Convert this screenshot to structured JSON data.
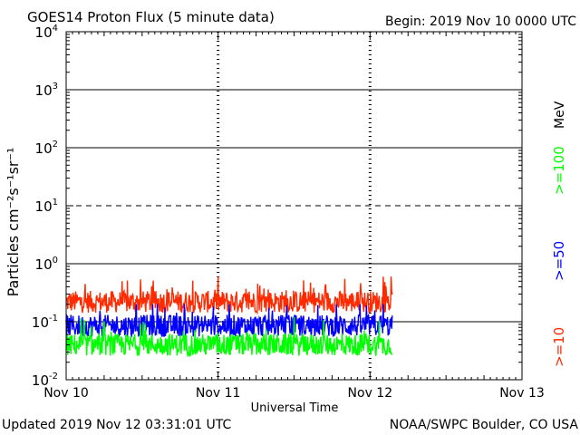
{
  "chart_data": {
    "type": "line",
    "title": "GOES14 Proton Flux (5 minute data)",
    "begin_label": "Begin: 2019 Nov 10 0000 UTC",
    "xlabel": "Universal Time",
    "ylabel": "Particles cm⁻²s⁻¹sr⁻¹",
    "y_scale": "log",
    "ylim": [
      0.01,
      10000
    ],
    "y_ticks": [
      {
        "value": 10000,
        "base": "10",
        "exp": "4"
      },
      {
        "value": 1000,
        "base": "10",
        "exp": "3"
      },
      {
        "value": 100,
        "base": "10",
        "exp": "2"
      },
      {
        "value": 10,
        "base": "10",
        "exp": "1"
      },
      {
        "value": 1,
        "base": "10",
        "exp": "0"
      },
      {
        "value": 0.1,
        "base": "10",
        "exp": "-1"
      },
      {
        "value": 0.01,
        "base": "10",
        "exp": "-2"
      }
    ],
    "xlim_days": [
      0,
      3
    ],
    "x_ticks": [
      {
        "day": 0,
        "label": "Nov 10"
      },
      {
        "day": 1,
        "label": "Nov 11"
      },
      {
        "day": 2,
        "label": "Nov 12"
      },
      {
        "day": 3,
        "label": "Nov 13"
      }
    ],
    "data_end_day": 2.146,
    "reference_levels": [
      {
        "value": 10,
        "style": "dashed"
      }
    ],
    "series": [
      {
        "name": ">=10",
        "color": "#ff2a00",
        "typical": 0.22,
        "min": 0.14,
        "max": 0.6
      },
      {
        "name": ">=50",
        "color": "#0000ff",
        "typical": 0.085,
        "min": 0.055,
        "max": 0.2
      },
      {
        "name": ">=100",
        "color": "#00ff00",
        "typical": 0.04,
        "min": 0.025,
        "max": 0.12
      }
    ],
    "unit_label": "MeV",
    "updated": "Updated 2019 Nov 12 03:31:01 UTC",
    "credit": "NOAA/SWPC Boulder, CO USA"
  }
}
